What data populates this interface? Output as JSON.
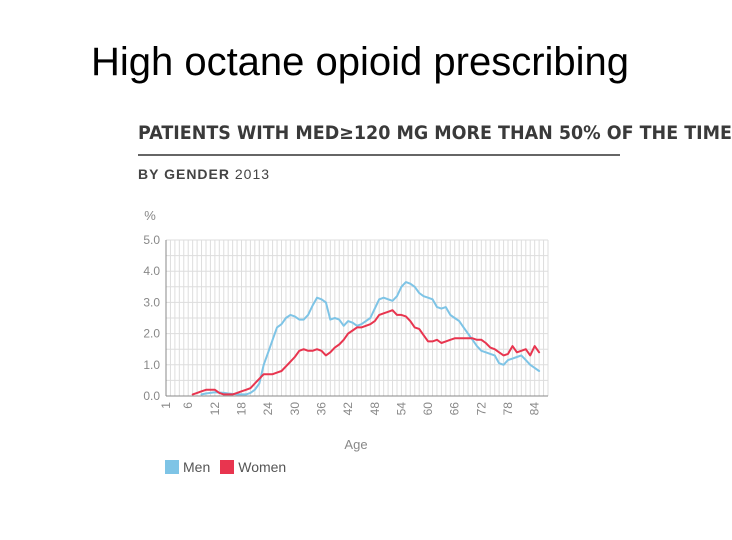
{
  "slide": {
    "title": "High octane opioid prescribing"
  },
  "colors": {
    "men": "#7ec4e6",
    "women": "#e8354f",
    "grid": "#dddddd",
    "axis": "#888888",
    "text": "#888888"
  },
  "chart_data": {
    "type": "line",
    "title": "PATIENTS WITH MED≥120 MG MORE THAN 50% OF THE TIME",
    "subtitle_bold": "BY GENDER",
    "subtitle_year": "2013",
    "ylabel": "%",
    "xlabel": "Age",
    "ylim": [
      0,
      5
    ],
    "yticks": [
      "0.0",
      "1.0",
      "2.0",
      "3.0",
      "4.0",
      "5.0"
    ],
    "xlim": [
      1,
      87
    ],
    "xticks": [
      "1",
      "6",
      "12",
      "18",
      "24",
      "30",
      "36",
      "42",
      "48",
      "54",
      "60",
      "66",
      "72",
      "78",
      "84"
    ],
    "grid": true,
    "legend_position": "bottom-left",
    "series": [
      {
        "name": "Men",
        "color": "#7ec4e6",
        "x": [
          9,
          10,
          12,
          14,
          15,
          17,
          18,
          19,
          20,
          21,
          22,
          23,
          24,
          25,
          26,
          27,
          28,
          29,
          30,
          31,
          32,
          33,
          34,
          35,
          36,
          37,
          38,
          39,
          40,
          41,
          42,
          43,
          44,
          45,
          46,
          47,
          48,
          49,
          50,
          51,
          52,
          53,
          54,
          55,
          56,
          57,
          58,
          59,
          60,
          61,
          62,
          63,
          64,
          65,
          66,
          67,
          68,
          69,
          70,
          71,
          72,
          73,
          74,
          75,
          76,
          77,
          78,
          79,
          80,
          81,
          82,
          83,
          84,
          85
        ],
        "y": [
          0.05,
          0.08,
          0.12,
          0.1,
          0.08,
          0.05,
          0.05,
          0.05,
          0.1,
          0.2,
          0.4,
          1.0,
          1.4,
          1.8,
          2.2,
          2.3,
          2.5,
          2.6,
          2.55,
          2.45,
          2.45,
          2.6,
          2.9,
          3.15,
          3.1,
          3.0,
          2.45,
          2.5,
          2.45,
          2.25,
          2.4,
          2.35,
          2.25,
          2.3,
          2.4,
          2.5,
          2.8,
          3.1,
          3.15,
          3.1,
          3.05,
          3.2,
          3.5,
          3.65,
          3.6,
          3.5,
          3.3,
          3.2,
          3.15,
          3.1,
          2.85,
          2.8,
          2.85,
          2.6,
          2.5,
          2.4,
          2.2,
          2.0,
          1.8,
          1.6,
          1.45,
          1.4,
          1.35,
          1.3,
          1.05,
          1.0,
          1.15,
          1.2,
          1.25,
          1.3,
          1.15,
          1.0,
          0.9,
          0.8
        ]
      },
      {
        "name": "Women",
        "color": "#e8354f",
        "x": [
          7,
          8,
          9,
          10,
          11,
          12,
          13,
          14,
          15,
          16,
          17,
          18,
          19,
          20,
          21,
          22,
          23,
          24,
          25,
          26,
          27,
          28,
          29,
          30,
          31,
          32,
          33,
          34,
          35,
          36,
          37,
          38,
          39,
          40,
          41,
          42,
          43,
          44,
          45,
          46,
          47,
          48,
          49,
          50,
          51,
          52,
          53,
          54,
          55,
          56,
          57,
          58,
          59,
          60,
          61,
          62,
          63,
          64,
          65,
          66,
          67,
          68,
          69,
          70,
          71,
          72,
          73,
          74,
          75,
          76,
          77,
          78,
          79,
          80,
          81,
          82,
          83,
          84,
          85
        ],
        "y": [
          0.05,
          0.1,
          0.15,
          0.2,
          0.2,
          0.2,
          0.1,
          0.05,
          0.05,
          0.05,
          0.1,
          0.15,
          0.2,
          0.25,
          0.4,
          0.55,
          0.7,
          0.7,
          0.7,
          0.75,
          0.8,
          0.95,
          1.1,
          1.25,
          1.45,
          1.5,
          1.45,
          1.45,
          1.5,
          1.45,
          1.3,
          1.4,
          1.55,
          1.65,
          1.8,
          2.0,
          2.1,
          2.2,
          2.2,
          2.25,
          2.3,
          2.4,
          2.6,
          2.65,
          2.7,
          2.75,
          2.6,
          2.6,
          2.55,
          2.4,
          2.2,
          2.15,
          1.95,
          1.75,
          1.75,
          1.8,
          1.7,
          1.75,
          1.8,
          1.85,
          1.85,
          1.85,
          1.85,
          1.85,
          1.8,
          1.8,
          1.7,
          1.55,
          1.5,
          1.4,
          1.3,
          1.35,
          1.6,
          1.4,
          1.45,
          1.5,
          1.3,
          1.6,
          1.4
        ]
      }
    ]
  }
}
